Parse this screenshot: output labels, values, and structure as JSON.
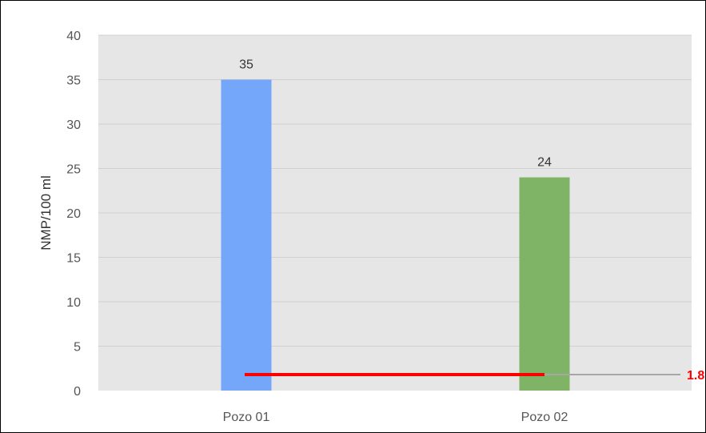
{
  "chart_data": {
    "type": "bar",
    "categories": [
      "Pozo 01",
      "Pozo 02"
    ],
    "values": [
      35,
      24
    ],
    "data_labels": [
      "35",
      "24"
    ],
    "bar_colors": [
      "#74A6FA",
      "#7FB365"
    ],
    "ylabel": "NMP/100 ml",
    "xlabel": "",
    "title": "",
    "ylim": [
      0,
      40
    ],
    "yticks": [
      "0",
      "5",
      "10",
      "15",
      "20",
      "25",
      "30",
      "35",
      "40"
    ],
    "grid": true,
    "plot_background": "#E6E6E6",
    "gridline_color": "#D0D0D0",
    "reference_line": {
      "value": 1.8,
      "label": "1.8",
      "color": "#FF0000",
      "extension_color": "#A6A6A6"
    }
  }
}
